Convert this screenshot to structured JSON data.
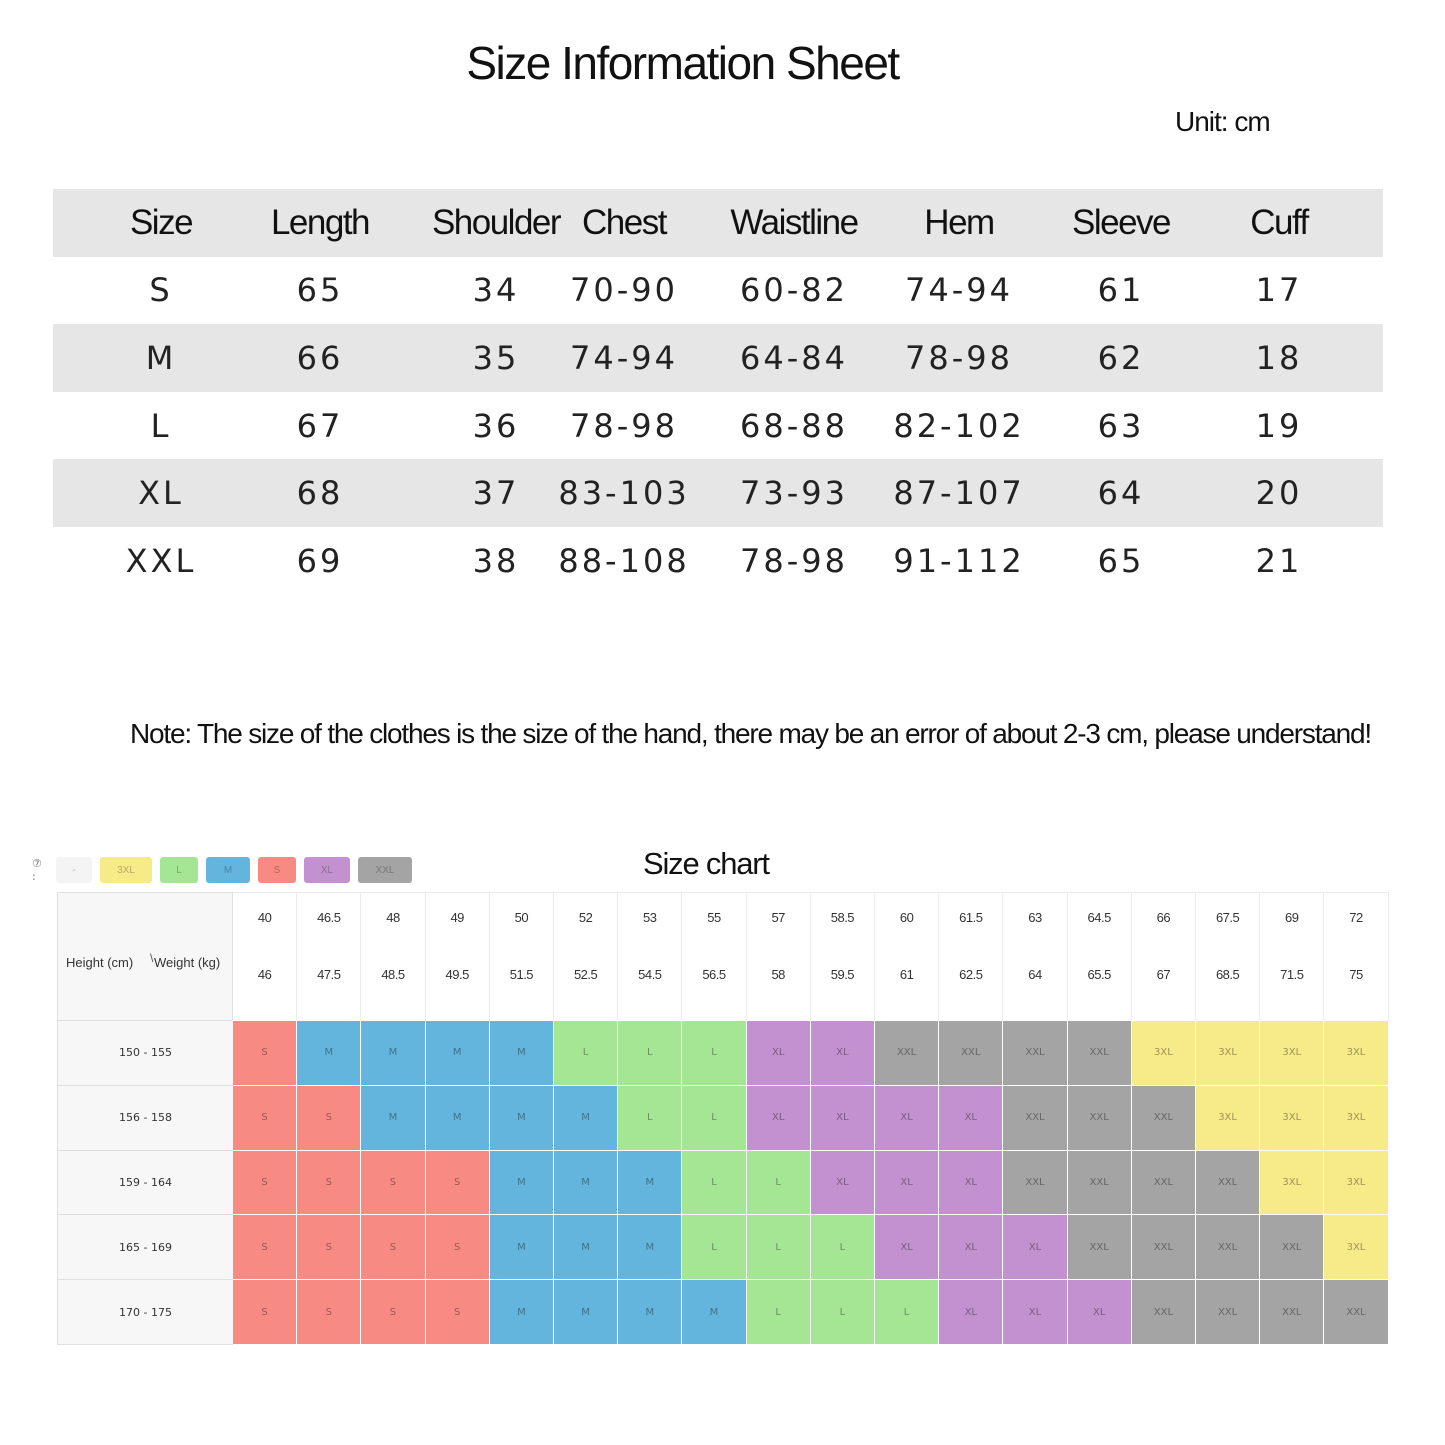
{
  "header": {
    "title": "Size Information Sheet",
    "unit": "Unit: cm"
  },
  "size_table": {
    "columns": [
      "Size",
      "Length",
      "Shoulder",
      "Chest",
      "Waistline",
      "Hem",
      "Sleeve",
      "Cuff"
    ],
    "rows": [
      [
        "S",
        "65",
        "34",
        "70-90",
        "60-82",
        "74-94",
        "61",
        "17"
      ],
      [
        "M",
        "66",
        "35",
        "74-94",
        "64-84",
        "78-98",
        "62",
        "18"
      ],
      [
        "L",
        "67",
        "36",
        "78-98",
        "68-88",
        "82-102",
        "63",
        "19"
      ],
      [
        "XL",
        "68",
        "37",
        "83-103",
        "73-93",
        "87-107",
        "64",
        "20"
      ],
      [
        "XXL",
        "69",
        "38",
        "88-108",
        "78-98",
        "91-112",
        "65",
        "21"
      ]
    ]
  },
  "note": "Note: The size of the clothes is the size of the hand, there may be an error of about 2-3 cm, please understand!",
  "size_chart": {
    "title": "Size chart",
    "legend_prefix": "⑦ :",
    "legend": [
      {
        "label": "-",
        "color": "#f4f4f4"
      },
      {
        "label": "3XL",
        "color": "#f7ea88"
      },
      {
        "label": "L",
        "color": "#a5e695"
      },
      {
        "label": "M",
        "color": "#64b5dd"
      },
      {
        "label": "S",
        "color": "#f78b83"
      },
      {
        "label": "XL",
        "color": "#c491d0"
      },
      {
        "label": "XXL",
        "color": "#a4a4a4"
      }
    ],
    "colors": {
      "S": "#f78b83",
      "M": "#64b5dd",
      "L": "#a5e695",
      "XL": "#c491d0",
      "XXL": "#a4a4a4",
      "3XL": "#f7ea88"
    },
    "height_label": "Height (cm)",
    "weight_label": "Weight (kg)",
    "weight_columns": [
      [
        "40",
        "46"
      ],
      [
        "46.5",
        "47.5"
      ],
      [
        "48",
        "48.5"
      ],
      [
        "49",
        "49.5"
      ],
      [
        "50",
        "51.5"
      ],
      [
        "52",
        "52.5"
      ],
      [
        "53",
        "54.5"
      ],
      [
        "55",
        "56.5"
      ],
      [
        "57",
        "58"
      ],
      [
        "58.5",
        "59.5"
      ],
      [
        "60",
        "61"
      ],
      [
        "61.5",
        "62.5"
      ],
      [
        "63",
        "64"
      ],
      [
        "64.5",
        "65.5"
      ],
      [
        "66",
        "67"
      ],
      [
        "67.5",
        "68.5"
      ],
      [
        "69",
        "71.5"
      ],
      [
        "72",
        "75"
      ]
    ],
    "height_rows": [
      "150 - 155",
      "156 - 158",
      "159 - 164",
      "165 - 169",
      "170 - 175"
    ],
    "cells": [
      [
        "S",
        "M",
        "M",
        "M",
        "M",
        "L",
        "L",
        "L",
        "XL",
        "XL",
        "XXL",
        "XXL",
        "XXL",
        "XXL",
        "3XL",
        "3XL",
        "3XL",
        "3XL"
      ],
      [
        "S",
        "S",
        "M",
        "M",
        "M",
        "M",
        "L",
        "L",
        "XL",
        "XL",
        "XL",
        "XL",
        "XXL",
        "XXL",
        "XXL",
        "3XL",
        "3XL",
        "3XL"
      ],
      [
        "S",
        "S",
        "S",
        "S",
        "M",
        "M",
        "M",
        "L",
        "L",
        "XL",
        "XL",
        "XL",
        "XXL",
        "XXL",
        "XXL",
        "XXL",
        "3XL",
        "3XL"
      ],
      [
        "S",
        "S",
        "S",
        "S",
        "M",
        "M",
        "M",
        "L",
        "L",
        "L",
        "XL",
        "XL",
        "XL",
        "XXL",
        "XXL",
        "XXL",
        "XXL",
        "3XL"
      ],
      [
        "S",
        "S",
        "S",
        "S",
        "M",
        "M",
        "M",
        "M",
        "L",
        "L",
        "L",
        "XL",
        "XL",
        "XL",
        "XXL",
        "XXL",
        "XXL",
        "XXL"
      ]
    ]
  }
}
